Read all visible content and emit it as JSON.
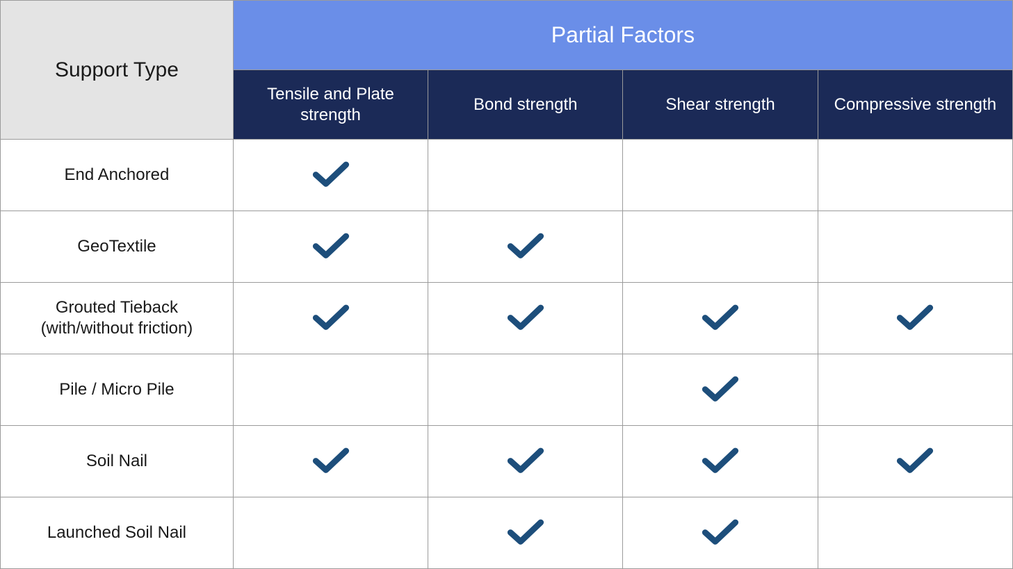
{
  "table": {
    "type": "table",
    "border_color": "#9b9b9b",
    "background_color": "#ffffff",
    "checkmark_color": "#1d4e7b",
    "columns": {
      "row_header": {
        "label": "Support Type",
        "bg_color": "#e4e4e4",
        "text_color": "#1a1a1a",
        "fontsize": 30
      },
      "group_header": {
        "label": "Partial Factors",
        "bg_color": "#6a8ee8",
        "text_color": "#ffffff",
        "fontsize": 32
      },
      "subheaders": [
        {
          "label": "Tensile and Plate strength",
          "bg_color": "#1b2a57",
          "text_color": "#ffffff",
          "fontsize": 24
        },
        {
          "label": "Bond strength",
          "bg_color": "#1b2a57",
          "text_color": "#ffffff",
          "fontsize": 24
        },
        {
          "label": "Shear strength",
          "bg_color": "#1b2a57",
          "text_color": "#ffffff",
          "fontsize": 24
        },
        {
          "label": "Compressive strength",
          "bg_color": "#1b2a57",
          "text_color": "#ffffff",
          "fontsize": 24
        }
      ]
    },
    "rows": [
      {
        "label": "End Anchored",
        "checks": [
          true,
          false,
          false,
          false
        ]
      },
      {
        "label": "GeoTextile",
        "checks": [
          true,
          true,
          false,
          false
        ]
      },
      {
        "label": "Grouted Tieback (with/without friction)",
        "checks": [
          true,
          true,
          true,
          true
        ]
      },
      {
        "label": "Pile / Micro Pile",
        "checks": [
          false,
          false,
          true,
          false
        ]
      },
      {
        "label": "Soil Nail",
        "checks": [
          true,
          true,
          true,
          true
        ]
      },
      {
        "label": "Launched Soil Nail",
        "checks": [
          false,
          true,
          true,
          false
        ]
      }
    ]
  }
}
